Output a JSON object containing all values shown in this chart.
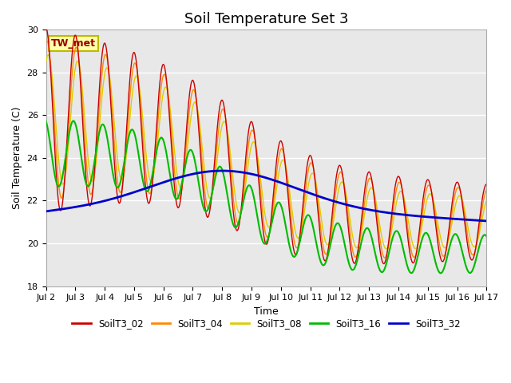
{
  "title": "Soil Temperature Set 3",
  "xlabel": "Time",
  "ylabel": "Soil Temperature (C)",
  "ylim": [
    18,
    30
  ],
  "xlim": [
    0,
    15
  ],
  "xtick_labels": [
    "Jul 2",
    "Jul 3",
    "Jul 4",
    "Jul 5",
    "Jul 6",
    "Jul 7",
    "Jul 8",
    "Jul 9",
    "Jul 10",
    "Jul 11",
    "Jul 12",
    "Jul 13",
    "Jul 14",
    "Jul 15",
    "Jul 16",
    "Jul 17"
  ],
  "ytick_vals": [
    18,
    20,
    22,
    24,
    26,
    28,
    30
  ],
  "line_colors": {
    "SoilT3_02": "#cc0000",
    "SoilT3_04": "#ff8800",
    "SoilT3_08": "#ddcc00",
    "SoilT3_16": "#00bb00",
    "SoilT3_32": "#0000cc"
  },
  "annotation_text": "TW_met",
  "bg_color": "#e8e8e8",
  "fig_bg": "#ffffff",
  "title_fontsize": 13,
  "axis_fontsize": 9,
  "tick_fontsize": 8
}
